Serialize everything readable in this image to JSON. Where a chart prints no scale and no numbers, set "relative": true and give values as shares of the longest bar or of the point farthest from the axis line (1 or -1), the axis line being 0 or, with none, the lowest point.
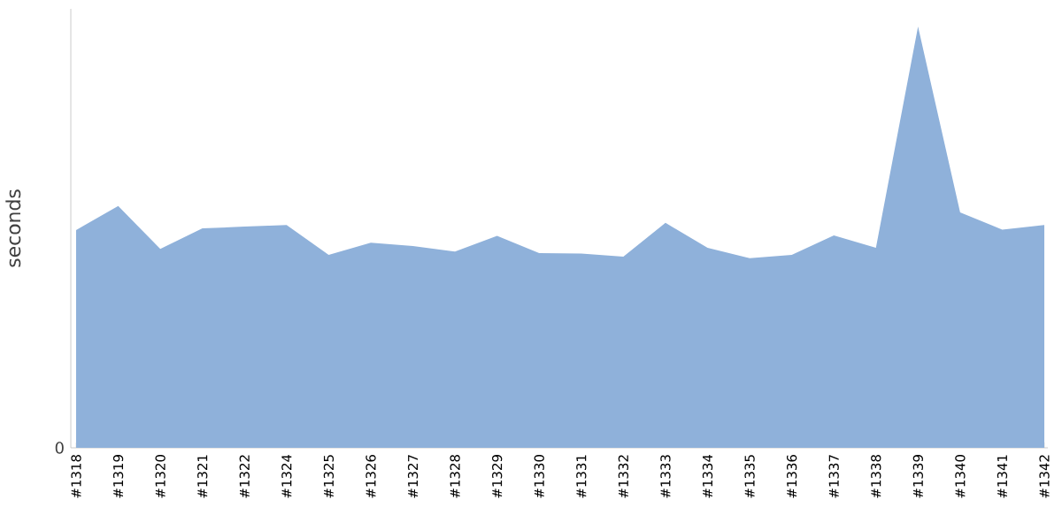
{
  "chart_data": {
    "type": "area",
    "ylabel": "seconds",
    "relative": true,
    "color": "#8fb1da",
    "categories": [
      "#1318",
      "#1319",
      "#1320",
      "#1321",
      "#1322",
      "#1324",
      "#1325",
      "#1326",
      "#1327",
      "#1328",
      "#1329",
      "#1330",
      "#1331",
      "#1332",
      "#1333",
      "#1334",
      "#1335",
      "#1336",
      "#1337",
      "#1338",
      "#1339",
      "#1340",
      "#1341",
      "#1342"
    ],
    "values": [
      0.517,
      0.574,
      0.472,
      0.521,
      0.525,
      0.529,
      0.458,
      0.487,
      0.479,
      0.466,
      0.503,
      0.462,
      0.461,
      0.454,
      0.534,
      0.475,
      0.45,
      0.458,
      0.504,
      0.475,
      1,
      0.559,
      0.518,
      0.529
    ],
    "annotations": [
      "0"
    ]
  }
}
